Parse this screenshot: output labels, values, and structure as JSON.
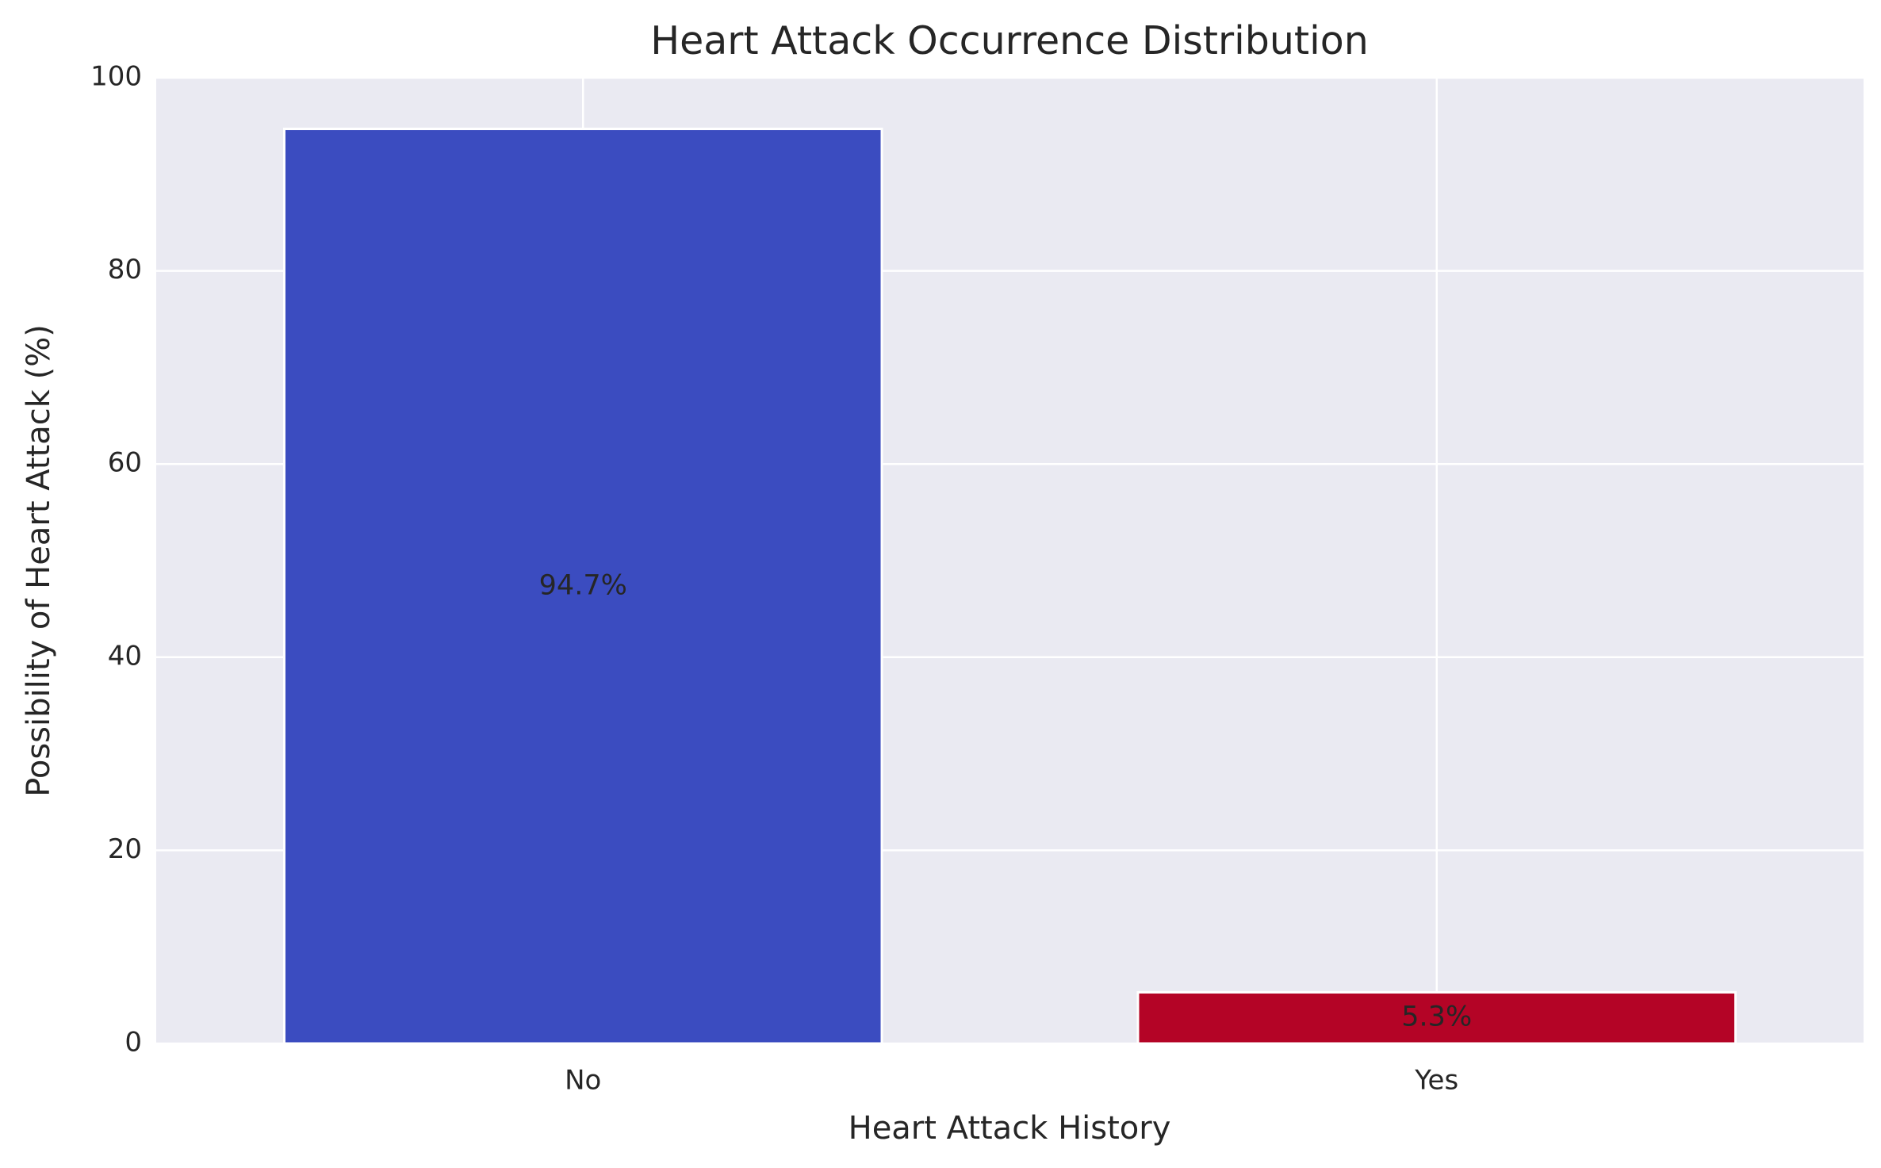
{
  "chart_data": {
    "type": "bar",
    "title": "Heart Attack Occurrence Distribution",
    "xlabel": "Heart Attack History",
    "ylabel": "Possibility of Heart Attack (%)",
    "categories": [
      "No",
      "Yes"
    ],
    "values": [
      94.7,
      5.3
    ],
    "data_labels": [
      "94.7%",
      "5.3%"
    ],
    "bar_colors": [
      "#3b4cc0",
      "#b40426"
    ],
    "ylim": [
      0,
      100
    ],
    "yticks": [
      0,
      20,
      40,
      60,
      80,
      100
    ],
    "grid": true,
    "background_color": "#eaeaf2",
    "grid_color": "#ffffff",
    "text_color": "#262626"
  }
}
